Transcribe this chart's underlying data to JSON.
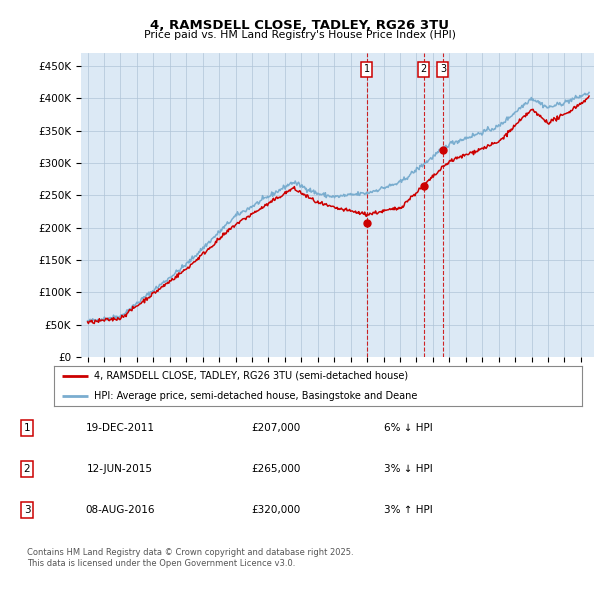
{
  "title": "4, RAMSDELL CLOSE, TADLEY, RG26 3TU",
  "subtitle": "Price paid vs. HM Land Registry's House Price Index (HPI)",
  "ylabel_ticks": [
    "£0",
    "£50K",
    "£100K",
    "£150K",
    "£200K",
    "£250K",
    "£300K",
    "£350K",
    "£400K",
    "£450K"
  ],
  "ytick_values": [
    0,
    50000,
    100000,
    150000,
    200000,
    250000,
    300000,
    350000,
    400000,
    450000
  ],
  "ylim": [
    0,
    470000
  ],
  "xlim_start": 1994.6,
  "xlim_end": 2025.8,
  "transaction_dates": [
    2011.97,
    2015.45,
    2016.61
  ],
  "transaction_prices": [
    207000,
    265000,
    320000
  ],
  "transaction_labels": [
    "1",
    "2",
    "3"
  ],
  "legend_red": "4, RAMSDELL CLOSE, TADLEY, RG26 3TU (semi-detached house)",
  "legend_blue": "HPI: Average price, semi-detached house, Basingstoke and Deane",
  "table_data": [
    [
      "1",
      "19-DEC-2011",
      "£207,000",
      "6% ↓ HPI"
    ],
    [
      "2",
      "12-JUN-2015",
      "£265,000",
      "3% ↓ HPI"
    ],
    [
      "3",
      "08-AUG-2016",
      "£320,000",
      "3% ↑ HPI"
    ]
  ],
  "footnote": "Contains HM Land Registry data © Crown copyright and database right 2025.\nThis data is licensed under the Open Government Licence v3.0.",
  "red_color": "#cc0000",
  "blue_color": "#7aadcf",
  "dashed_color": "#cc0000",
  "background_color": "#dce9f5",
  "plot_bg_color": "#ffffff",
  "grid_color": "#b0c4d8"
}
